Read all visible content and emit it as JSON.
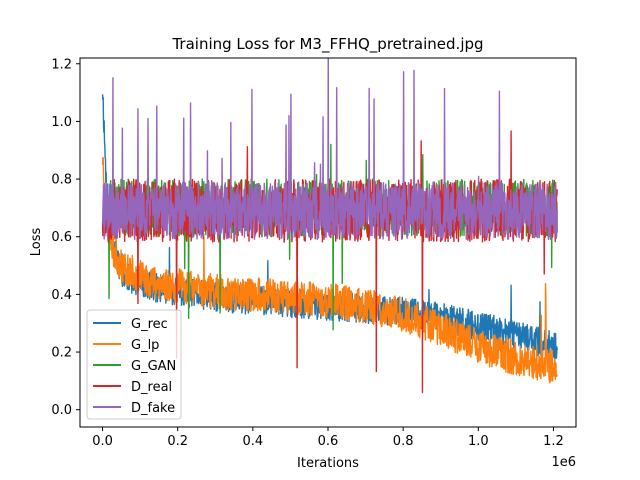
{
  "chart_data": {
    "type": "line",
    "title": "Training Loss for M3_FFHQ_pretrained.jpg",
    "xlabel": "Iterations",
    "ylabel": "Loss",
    "x_offset_label": "1e6",
    "xlim": [
      -0.06,
      1.26
    ],
    "ylim": [
      -0.06,
      1.22
    ],
    "x_ticks": [
      0.0,
      0.2,
      0.4,
      0.6,
      0.8,
      1.0,
      1.2
    ],
    "x_tick_labels": [
      "0.0",
      "0.2",
      "0.4",
      "0.6",
      "0.8",
      "1.0",
      "1.2"
    ],
    "y_ticks": [
      0.0,
      0.2,
      0.4,
      0.6,
      0.8,
      1.0,
      1.2
    ],
    "y_tick_labels": [
      "0.0",
      "0.2",
      "0.4",
      "0.6",
      "0.8",
      "1.0",
      "1.2"
    ],
    "legend_position": "lower-left",
    "grid": false,
    "series": [
      {
        "name": "G_rec",
        "color": "#1f77b4",
        "x": [
          0,
          0.01,
          0.03,
          0.05,
          0.1,
          0.15,
          0.2,
          0.3,
          0.4,
          0.5,
          0.6,
          0.7,
          0.8,
          0.9,
          1.0,
          1.1,
          1.2
        ],
        "y": [
          1.12,
          0.78,
          0.55,
          0.47,
          0.44,
          0.42,
          0.41,
          0.39,
          0.38,
          0.37,
          0.36,
          0.35,
          0.34,
          0.32,
          0.29,
          0.26,
          0.22
        ]
      },
      {
        "name": "G_lp",
        "color": "#ff7f0e",
        "x": [
          0,
          0.01,
          0.03,
          0.05,
          0.1,
          0.15,
          0.2,
          0.3,
          0.4,
          0.5,
          0.6,
          0.7,
          0.8,
          0.9,
          1.0,
          1.1,
          1.2
        ],
        "y": [
          0.88,
          0.7,
          0.55,
          0.5,
          0.46,
          0.44,
          0.43,
          0.41,
          0.4,
          0.39,
          0.38,
          0.36,
          0.33,
          0.28,
          0.22,
          0.18,
          0.15
        ]
      },
      {
        "name": "G_GAN",
        "color": "#2ca02c",
        "x": [
          0,
          0.1,
          0.2,
          0.3,
          0.4,
          0.5,
          0.6,
          0.7,
          0.8,
          0.9,
          1.0,
          1.1,
          1.2
        ],
        "y": [
          0.7,
          0.7,
          0.7,
          0.7,
          0.7,
          0.7,
          0.7,
          0.7,
          0.7,
          0.7,
          0.7,
          0.7,
          0.7
        ]
      },
      {
        "name": "D_real",
        "color": "#d62728",
        "x": [
          0,
          0.1,
          0.2,
          0.3,
          0.4,
          0.5,
          0.6,
          0.7,
          0.8,
          0.9,
          1.0,
          1.1,
          1.2
        ],
        "y": [
          0.69,
          0.69,
          0.69,
          0.69,
          0.69,
          0.69,
          0.69,
          0.69,
          0.69,
          0.69,
          0.69,
          0.69,
          0.69
        ]
      },
      {
        "name": "D_fake",
        "color": "#9467bd",
        "x": [
          0,
          0.1,
          0.2,
          0.3,
          0.4,
          0.5,
          0.6,
          0.7,
          0.8,
          0.9,
          1.0,
          1.1,
          1.2
        ],
        "y": [
          0.69,
          0.69,
          0.69,
          0.69,
          0.69,
          0.69,
          0.69,
          0.69,
          0.69,
          0.69,
          0.69,
          0.69,
          0.69
        ]
      }
    ]
  }
}
